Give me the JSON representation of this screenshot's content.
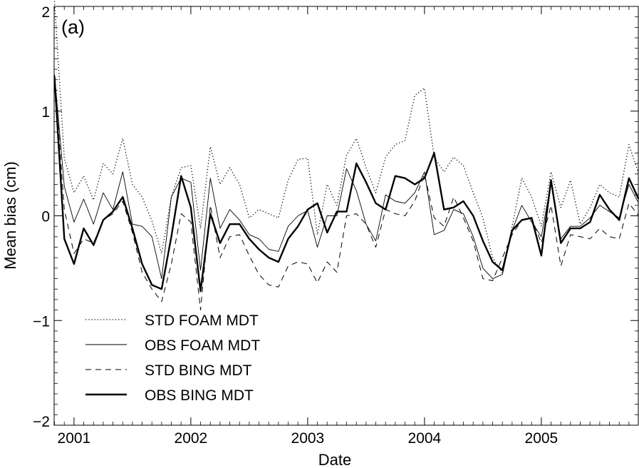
{
  "chart_data": {
    "type": "line",
    "panel_label": "(a)",
    "xlabel": "Date",
    "ylabel": "Mean bias (cm)",
    "xlim": [
      2000.83,
      2005.83
    ],
    "ylim": [
      -2,
      2
    ],
    "x_ticks": [
      2001,
      2002,
      2003,
      2004,
      2005
    ],
    "x_tick_labels": [
      "2001",
      "2002",
      "2003",
      "2004",
      "2005"
    ],
    "y_ticks": [
      -2,
      -1,
      0,
      1,
      2
    ],
    "y_tick_labels": [
      "−2",
      "−1",
      "0",
      "1",
      "2"
    ],
    "grid": false,
    "legend_position": "bottom-left",
    "x": [
      2000.833,
      2000.917,
      2001.0,
      2001.083,
      2001.167,
      2001.25,
      2001.333,
      2001.417,
      2001.5,
      2001.583,
      2001.667,
      2001.75,
      2001.833,
      2001.917,
      2002.0,
      2002.083,
      2002.167,
      2002.25,
      2002.333,
      2002.417,
      2002.5,
      2002.583,
      2002.667,
      2002.75,
      2002.833,
      2002.917,
      2003.0,
      2003.083,
      2003.167,
      2003.25,
      2003.333,
      2003.417,
      2003.5,
      2003.583,
      2003.667,
      2003.75,
      2003.833,
      2003.917,
      2004.0,
      2004.083,
      2004.167,
      2004.25,
      2004.333,
      2004.417,
      2004.5,
      2004.583,
      2004.667,
      2004.75,
      2004.833,
      2004.917,
      2005.0,
      2005.083,
      2005.167,
      2005.25,
      2005.333,
      2005.417,
      2005.5,
      2005.583,
      2005.667,
      2005.75,
      2005.833
    ],
    "series": [
      {
        "name": "STD FOAM MDT",
        "style": "dotted",
        "color": "#000000",
        "values": [
          2.05,
          0.55,
          0.22,
          0.38,
          0.15,
          0.5,
          0.4,
          0.74,
          0.3,
          0.18,
          -0.05,
          -0.36,
          0.18,
          0.46,
          0.48,
          -0.12,
          0.66,
          0.3,
          0.46,
          0.3,
          -0.02,
          0.06,
          0.02,
          -0.02,
          0.34,
          0.54,
          0.55,
          -0.18,
          0.3,
          0.1,
          0.58,
          0.74,
          0.46,
          0.22,
          0.56,
          0.68,
          0.72,
          1.15,
          1.22,
          0.56,
          0.42,
          0.56,
          0.48,
          0.22,
          -0.02,
          -0.4,
          -0.55,
          -0.1,
          0.36,
          0.18,
          -0.1,
          0.42,
          0.08,
          0.34,
          -0.08,
          0.08,
          0.3,
          0.22,
          0.18,
          0.68,
          0.4
        ]
      },
      {
        "name": "OBS FOAM MDT",
        "style": "thin-solid",
        "color": "#000000",
        "values": [
          1.35,
          0.28,
          -0.06,
          0.16,
          -0.08,
          0.22,
          0.06,
          0.42,
          -0.08,
          -0.1,
          -0.2,
          -0.6,
          0.18,
          0.36,
          0.32,
          -0.52,
          0.36,
          -0.12,
          0.06,
          -0.04,
          -0.18,
          -0.22,
          -0.32,
          -0.34,
          -0.1,
          0.0,
          0.05,
          -0.3,
          0.0,
          0.0,
          0.45,
          0.24,
          -0.08,
          -0.24,
          0.2,
          0.14,
          0.12,
          0.22,
          0.42,
          -0.18,
          -0.14,
          0.06,
          0.02,
          -0.2,
          -0.5,
          -0.6,
          -0.56,
          -0.14,
          0.1,
          -0.06,
          -0.2,
          0.32,
          -0.22,
          -0.1,
          -0.1,
          -0.02,
          0.1,
          0.04,
          -0.02,
          0.3,
          0.12
        ]
      },
      {
        "name": "STD BING MDT",
        "style": "dashed",
        "color": "#000000",
        "values": [
          1.35,
          0.06,
          -0.36,
          -0.22,
          -0.26,
          -0.04,
          0.02,
          0.14,
          -0.16,
          -0.54,
          -0.7,
          -0.82,
          -0.46,
          0.02,
          -0.06,
          -0.9,
          0.1,
          -0.4,
          -0.2,
          -0.18,
          -0.38,
          -0.56,
          -0.66,
          -0.68,
          -0.48,
          -0.44,
          -0.46,
          -0.64,
          -0.44,
          -0.54,
          0.0,
          0.02,
          -0.08,
          -0.3,
          0.06,
          0.02,
          0.0,
          0.14,
          0.4,
          -0.02,
          -0.1,
          0.18,
          -0.02,
          -0.24,
          -0.6,
          -0.62,
          -0.4,
          -0.18,
          -0.04,
          -0.02,
          -0.26,
          0.1,
          -0.48,
          -0.18,
          -0.2,
          -0.22,
          -0.12,
          -0.2,
          -0.22,
          0.12,
          0.0
        ]
      },
      {
        "name": "OBS BING MDT",
        "style": "thick-solid",
        "color": "#000000",
        "values": [
          1.33,
          -0.22,
          -0.46,
          -0.12,
          -0.28,
          -0.04,
          0.04,
          0.18,
          -0.12,
          -0.46,
          -0.66,
          -0.7,
          -0.2,
          0.38,
          0.08,
          -0.72,
          0.02,
          -0.26,
          -0.08,
          -0.08,
          -0.22,
          -0.32,
          -0.4,
          -0.44,
          -0.22,
          -0.1,
          0.06,
          0.12,
          -0.16,
          0.04,
          0.04,
          0.5,
          0.32,
          0.12,
          0.06,
          0.38,
          0.36,
          0.3,
          0.36,
          0.6,
          0.06,
          0.08,
          0.14,
          0.0,
          -0.24,
          -0.44,
          -0.52,
          -0.14,
          -0.04,
          -0.02,
          -0.38,
          0.34,
          -0.26,
          -0.12,
          -0.12,
          -0.06,
          0.2,
          0.06,
          -0.04,
          0.36,
          0.16
        ]
      }
    ]
  }
}
